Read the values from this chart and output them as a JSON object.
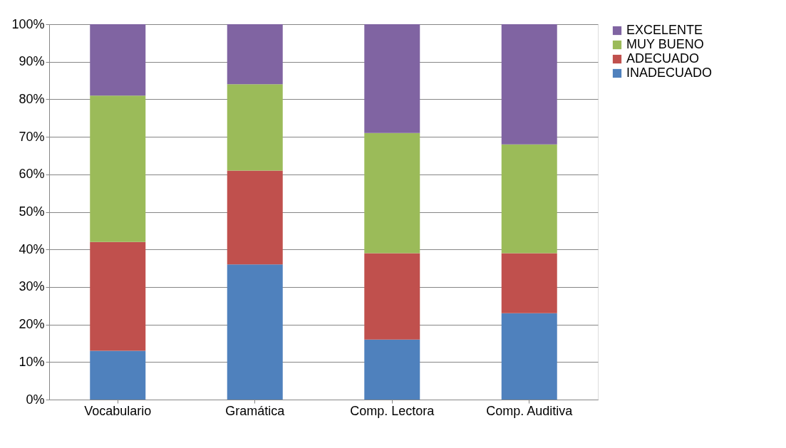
{
  "chart_data": {
    "type": "bar",
    "stacked": true,
    "categories": [
      "Vocabulario",
      "Gramática",
      "Comp. Lectora",
      "Comp. Auditiva"
    ],
    "series": [
      {
        "name": "INADECUADO",
        "color": "#4f81bd",
        "values": [
          13,
          36,
          16,
          23
        ]
      },
      {
        "name": "ADECUADO",
        "color": "#c0504d",
        "values": [
          29,
          25,
          23,
          16
        ]
      },
      {
        "name": "MUY BUENO",
        "color": "#9bbb59",
        "values": [
          39,
          23,
          32,
          29
        ]
      },
      {
        "name": "EXCELENTE",
        "color": "#8064a2",
        "values": [
          19,
          16,
          29,
          32
        ]
      }
    ],
    "ylim": [
      0,
      100
    ],
    "yticks": [
      {
        "value": 0,
        "label": "0%"
      },
      {
        "value": 10,
        "label": "10%"
      },
      {
        "value": 20,
        "label": "20%"
      },
      {
        "value": 30,
        "label": "30%"
      },
      {
        "value": 40,
        "label": "40%"
      },
      {
        "value": 50,
        "label": "50%"
      },
      {
        "value": 60,
        "label": "60%"
      },
      {
        "value": 70,
        "label": "70%"
      },
      {
        "value": 80,
        "label": "80%"
      },
      {
        "value": 90,
        "label": "90%"
      },
      {
        "value": 100,
        "label": "100%"
      }
    ],
    "grid": "y",
    "legend": "right"
  }
}
